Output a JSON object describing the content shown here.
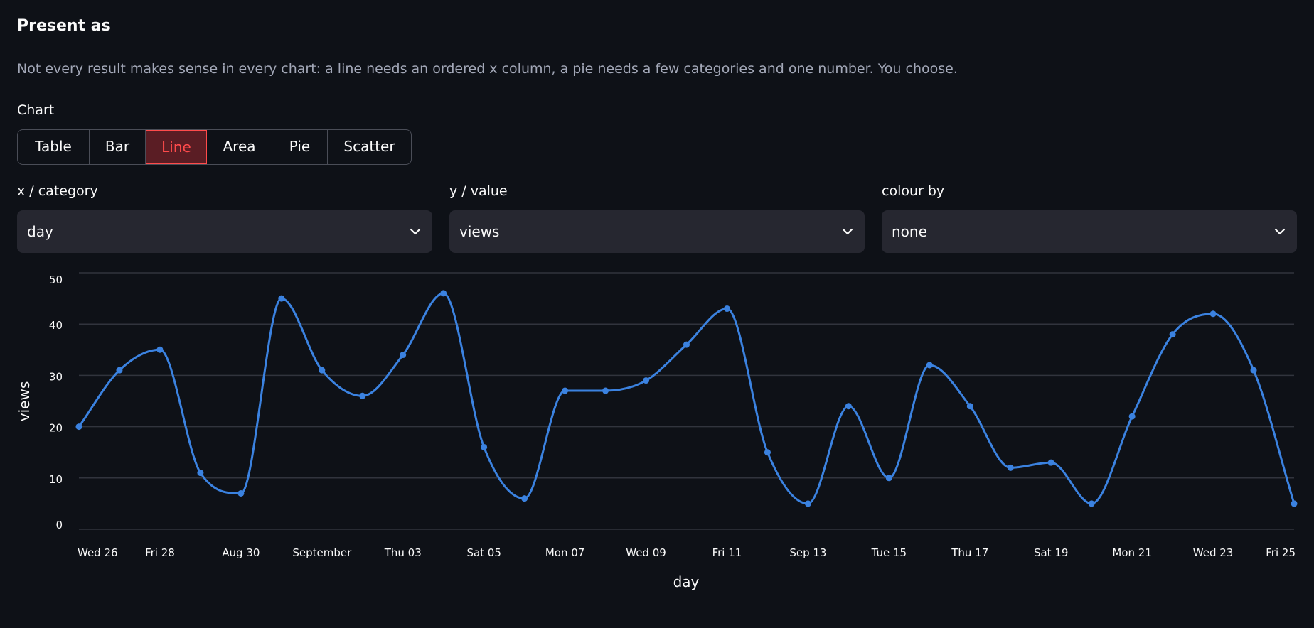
{
  "heading": "Present as",
  "description": "Not every result makes sense in every chart: a line needs an ordered x column, a pie needs a few categories and one number. You choose.",
  "chart_label": "Chart",
  "chart_types": [
    "Table",
    "Bar",
    "Line",
    "Area",
    "Pie",
    "Scatter"
  ],
  "chart_type_selected": "Line",
  "selects": {
    "x": {
      "label": "x / category",
      "value": "day"
    },
    "y": {
      "label": "y / value",
      "value": "views"
    },
    "colour": {
      "label": "colour by",
      "value": "none"
    }
  },
  "colors": {
    "line": "#3b82e0",
    "accent": "#ff4b4b",
    "grid": "#31343d",
    "background": "#0e1117"
  },
  "chart_data": {
    "type": "line",
    "title": "",
    "xlabel": "day",
    "ylabel": "views",
    "x": [
      "2026-08-26",
      "2026-08-27",
      "2026-08-28",
      "2026-08-29",
      "2026-08-30",
      "2026-08-31",
      "2026-09-01",
      "2026-09-02",
      "2026-09-03",
      "2026-09-04",
      "2026-09-05",
      "2026-09-06",
      "2026-09-07",
      "2026-09-08",
      "2026-09-09",
      "2026-09-10",
      "2026-09-11",
      "2026-09-12",
      "2026-09-13",
      "2026-09-14",
      "2026-09-15",
      "2026-09-16",
      "2026-09-17",
      "2026-09-18",
      "2026-09-19",
      "2026-09-20",
      "2026-09-21",
      "2026-09-22",
      "2026-09-23",
      "2026-09-24",
      "2026-09-25"
    ],
    "series": [
      {
        "values": [
          20,
          31,
          35,
          11,
          7,
          45,
          31,
          26,
          34,
          46,
          16,
          6,
          27,
          27,
          29,
          36,
          43,
          15,
          5,
          24,
          10,
          32,
          24,
          12,
          13,
          5,
          22,
          38,
          42,
          31,
          5
        ]
      }
    ],
    "ylim": [
      0,
      50
    ],
    "yticks": [
      0,
      10,
      20,
      30,
      40,
      50
    ],
    "xtick_labels": [
      "Wed 26",
      "Fri 28",
      "Aug 30",
      "September",
      "Thu 03",
      "Sat 05",
      "Mon 07",
      "Wed 09",
      "Fri 11",
      "Sep 13",
      "Tue 15",
      "Thu 17",
      "Sat 19",
      "Mon 21",
      "Wed 23",
      "Fri 25"
    ],
    "xtick_positions": [
      "2026-08-26",
      "2026-08-28",
      "2026-08-30",
      "2026-09-01",
      "2026-09-03",
      "2026-09-05",
      "2026-09-07",
      "2026-09-09",
      "2026-09-11",
      "2026-09-13",
      "2026-09-15",
      "2026-09-17",
      "2026-09-19",
      "2026-09-21",
      "2026-09-23",
      "2026-09-25"
    ],
    "grid": true,
    "legend": "none"
  }
}
